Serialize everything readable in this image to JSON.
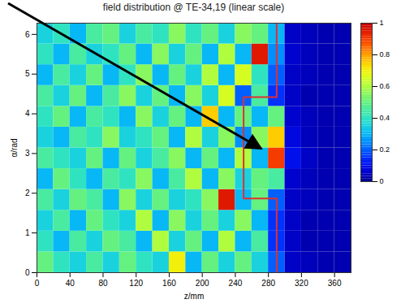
{
  "chart_data": {
    "type": "heatmap",
    "title": "field distribution @ TE-34,19 (linear scale)",
    "x_label": "z/mm",
    "y_label": "α/rad",
    "xlim": [
      0,
      380
    ],
    "xticks": [
      0,
      40,
      80,
      120,
      160,
      200,
      240,
      280,
      320,
      360
    ],
    "ylim": [
      0,
      6.283
    ],
    "yticks": [
      0,
      1,
      2,
      3,
      4,
      5,
      6
    ],
    "cells": {
      "z_edges": [
        0,
        20,
        40,
        60,
        80,
        100,
        120,
        140,
        160,
        180,
        200,
        220,
        240,
        260,
        280,
        300,
        320,
        340,
        360,
        380
      ],
      "alpha_edges": [
        0,
        0.524,
        1.047,
        1.571,
        2.094,
        2.618,
        3.142,
        3.665,
        4.189,
        4.712,
        5.236,
        5.76,
        6.283
      ],
      "values": [
        [
          0.5,
          0.4,
          0.35,
          0.45,
          0.35,
          0.5,
          0.4,
          0.35,
          0.7,
          0.3,
          0.5,
          0.35,
          0.5,
          0.35,
          0.2,
          0.05,
          0.04,
          0.03,
          0.03
        ],
        [
          0.4,
          0.3,
          0.45,
          0.35,
          0.5,
          0.45,
          0.3,
          0.6,
          0.35,
          0.5,
          0.3,
          0.6,
          0.3,
          0.45,
          0.15,
          0.05,
          0.03,
          0.03,
          0.03
        ],
        [
          0.35,
          0.45,
          0.3,
          0.5,
          0.4,
          0.35,
          0.6,
          0.3,
          0.55,
          0.35,
          0.5,
          0.35,
          0.55,
          0.3,
          0.15,
          0.05,
          0.03,
          0.03,
          0.03
        ],
        [
          0.45,
          0.35,
          0.5,
          0.45,
          0.3,
          0.55,
          0.35,
          0.5,
          0.35,
          0.4,
          0.55,
          0.95,
          0.3,
          0.5,
          0.2,
          0.05,
          0.04,
          0.03,
          0.03
        ],
        [
          0.3,
          0.5,
          0.4,
          0.3,
          0.45,
          0.4,
          0.55,
          0.3,
          0.45,
          0.6,
          0.3,
          0.55,
          0.35,
          0.5,
          0.45,
          0.06,
          0.04,
          0.03,
          0.03
        ],
        [
          0.45,
          0.4,
          0.35,
          0.5,
          0.3,
          0.5,
          0.35,
          0.45,
          0.55,
          0.3,
          0.5,
          0.3,
          0.6,
          0.3,
          0.9,
          0.1,
          0.05,
          0.03,
          0.03
        ],
        [
          0.35,
          0.3,
          0.45,
          0.4,
          0.55,
          0.35,
          0.4,
          0.5,
          0.3,
          0.6,
          0.35,
          0.55,
          0.25,
          0.55,
          0.75,
          0.08,
          0.04,
          0.03,
          0.03
        ],
        [
          0.4,
          0.5,
          0.3,
          0.45,
          0.4,
          0.3,
          0.55,
          0.35,
          0.5,
          0.3,
          0.75,
          0.3,
          0.5,
          0.3,
          0.5,
          0.06,
          0.04,
          0.03,
          0.03
        ],
        [
          0.45,
          0.35,
          0.5,
          0.3,
          0.45,
          0.55,
          0.35,
          0.5,
          0.3,
          0.55,
          0.35,
          0.65,
          0.2,
          0.45,
          0.15,
          0.05,
          0.03,
          0.03,
          0.03
        ],
        [
          0.3,
          0.45,
          0.35,
          0.5,
          0.3,
          0.4,
          0.55,
          0.3,
          0.5,
          0.35,
          0.6,
          0.3,
          0.65,
          0.4,
          0.2,
          0.05,
          0.04,
          0.03,
          0.03
        ],
        [
          0.4,
          0.3,
          0.45,
          0.35,
          0.4,
          0.5,
          0.3,
          0.55,
          0.35,
          0.5,
          0.3,
          0.6,
          0.3,
          0.95,
          0.25,
          0.06,
          0.04,
          0.03,
          0.03
        ],
        [
          0.35,
          0.4,
          0.3,
          0.45,
          0.5,
          0.35,
          0.45,
          0.4,
          0.55,
          0.4,
          0.5,
          0.35,
          0.55,
          0.5,
          0.3,
          0.05,
          0.04,
          0.03,
          0.03
        ]
      ]
    },
    "colorbar": {
      "range": [
        0,
        1
      ],
      "ticks": [
        0,
        0.2,
        0.4,
        0.6,
        0.8,
        1
      ]
    },
    "outline": {
      "z": [
        290,
        290,
        250,
        250,
        290,
        290
      ],
      "alpha": [
        0,
        1.87,
        1.87,
        4.42,
        4.42,
        6.283
      ],
      "color": "#e03030"
    }
  }
}
